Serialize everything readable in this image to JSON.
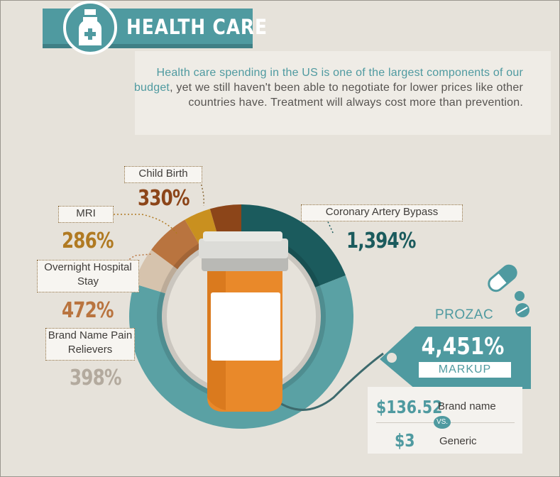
{
  "header": {
    "title": "HEALTH CARE",
    "badge_icon": "medicine-bottle-icon"
  },
  "intro": {
    "highlight": "Health care spending in the US is one of the largest components of our budget",
    "rest": ", yet we still haven't been able to negotiate for lower prices like other countries have. Treatment will always cost more than prevention."
  },
  "chart_data": {
    "type": "pie",
    "title": "",
    "unit": "%",
    "categories": [
      "Coronary Artery Bypass",
      "Child Birth",
      "MRI",
      "Overnight Hospital Stay",
      "Brand Name Pain Relievers"
    ],
    "values": [
      1394,
      330,
      286,
      472,
      398
    ],
    "labels": [
      "1,394%",
      "330%",
      "286%",
      "472%",
      "398%"
    ],
    "colors": [
      "#1b5b5d",
      "#8c4519",
      "#c9901f",
      "#b9743f",
      "#d6c3ad"
    ],
    "remainder_color": "#5aa1a4",
    "legend": "none",
    "highlight": {
      "name": "PROZAC",
      "value": 4451,
      "label": "4,451%",
      "tag": "MARKUP"
    }
  },
  "prices": {
    "brand_value": "$136.52",
    "brand_label": "Brand name",
    "vs": "VS.",
    "generic_value": "$3",
    "generic_label": "Generic"
  },
  "icons": [
    "pill-capsule-icon",
    "pill-tablet-icon",
    "pill-bottle-icon",
    "price-tag-icon"
  ]
}
